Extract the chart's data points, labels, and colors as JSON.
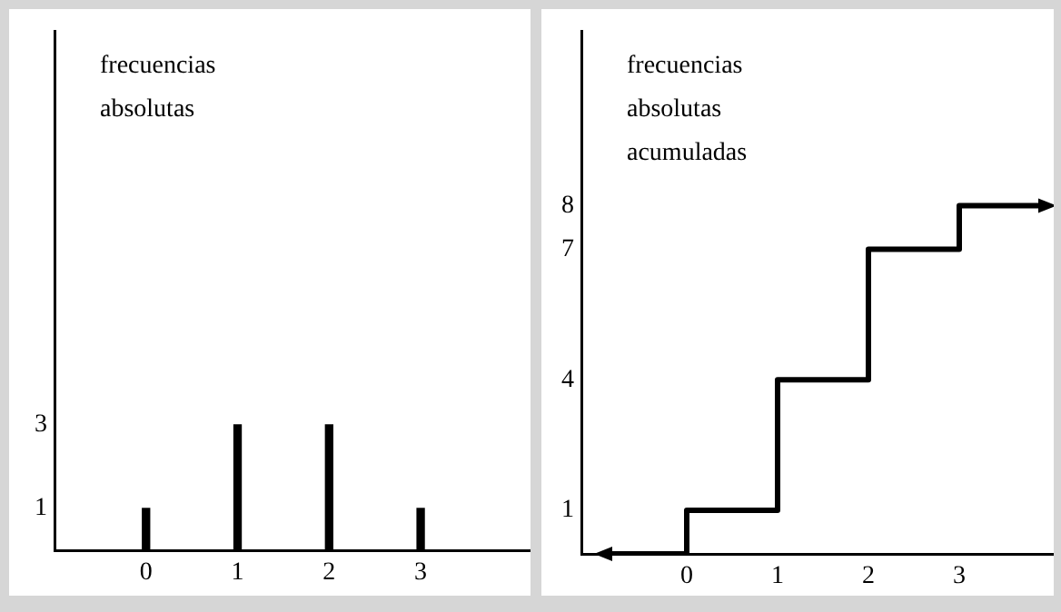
{
  "chart_data": [
    {
      "type": "bar",
      "title": "frecuencias absolutas",
      "x": [
        0,
        1,
        2,
        3
      ],
      "values": [
        1,
        3,
        3,
        1
      ],
      "color": "#000000",
      "xlim": [
        -1,
        4.2
      ],
      "xticks": [
        0,
        1,
        2,
        3
      ],
      "ylim": [
        0,
        12.4
      ],
      "yticks": [
        1,
        3
      ],
      "grid": false,
      "legend": false
    },
    {
      "type": "step",
      "title": "frecuencias absolutas acumuladas",
      "x": [
        -0.9,
        0,
        1,
        2,
        3,
        3.95
      ],
      "values": [
        0,
        1,
        4,
        7,
        8,
        8
      ],
      "color": "#000000",
      "xlim": [
        -1.16,
        4.04
      ],
      "xticks": [
        0,
        1,
        2,
        3
      ],
      "ylim": [
        0,
        12
      ],
      "yticks": [
        1,
        4,
        7,
        8
      ],
      "grid": false,
      "legend": false
    }
  ]
}
